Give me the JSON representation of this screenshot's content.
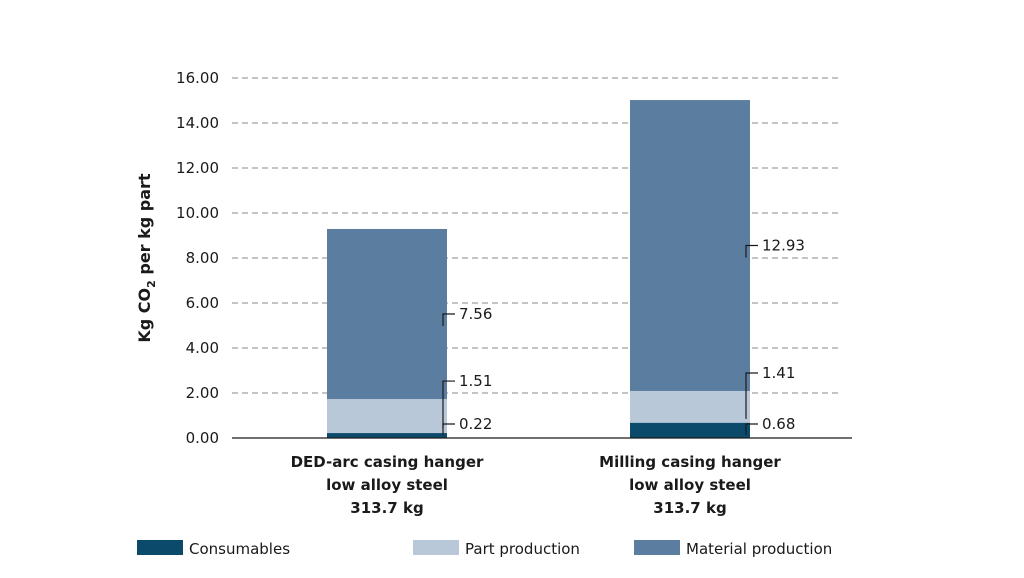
{
  "chart_data": {
    "type": "bar",
    "stacked": true,
    "ylabel": {
      "prefix": "Kg CO",
      "subscript": "2",
      "suffix": " per kg part"
    },
    "ylim": [
      0,
      16
    ],
    "yticks": [
      "0.00",
      "2.00",
      "4.00",
      "6.00",
      "8.00",
      "10.00",
      "12.00",
      "14.00",
      "16.00"
    ],
    "grid": "horizontal dashed",
    "categories": [
      [
        "DED-arc casing hanger",
        "low alloy steel",
        "313.7 kg"
      ],
      [
        "Milling casing hanger",
        "low alloy steel",
        "313.7 kg"
      ]
    ],
    "series": [
      {
        "name": "Consumables",
        "values": [
          0.22,
          0.68
        ],
        "labels": [
          "0.22",
          "0.68"
        ],
        "color": "#0b4a6b"
      },
      {
        "name": "Part production",
        "values": [
          1.51,
          1.41
        ],
        "labels": [
          "1.51",
          "1.41"
        ],
        "color": "#b9c8d9"
      },
      {
        "name": "Material production",
        "values": [
          7.56,
          12.93
        ],
        "labels": [
          "7.56",
          "12.93"
        ],
        "color": "#5b7da0"
      }
    ],
    "legend_position": "bottom"
  }
}
